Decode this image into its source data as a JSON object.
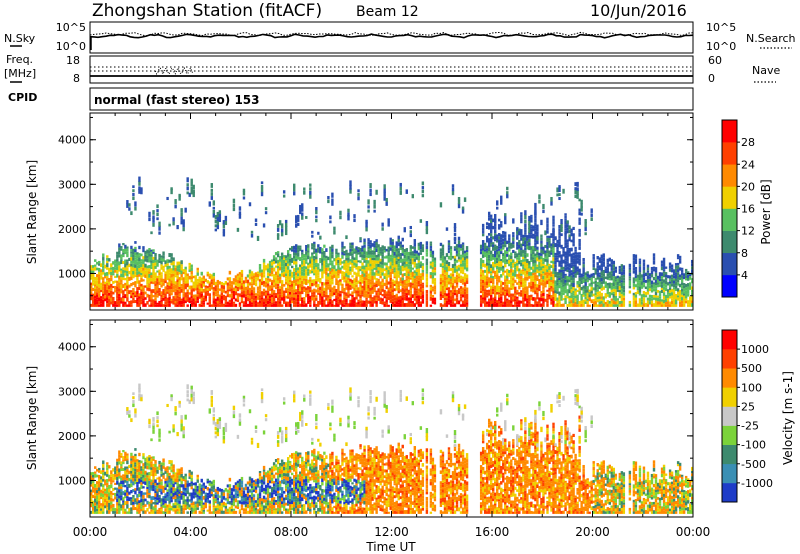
{
  "header": {
    "station": "Zhongshan Station (fitACF)",
    "beam": "Beam 12",
    "date": "10/Jun/2016"
  },
  "chart_data": {
    "type": "heatmap",
    "x_axis": {
      "label": "Time UT",
      "range_hours": [
        0,
        24
      ],
      "tick_labels": [
        "00:00",
        "04:00",
        "08:00",
        "12:00",
        "16:00",
        "20:00",
        "00:00"
      ]
    },
    "nsky_panel": {
      "left_label": "N.Sky",
      "right_label": "N.Search",
      "left_ticks": [
        "10^5",
        "10^0"
      ],
      "right_ticks": [
        "10^5",
        "10^0"
      ]
    },
    "freq_panel": {
      "left_label_1": "Freq.",
      "left_label_2": "[MHz]",
      "right_label": "Nave",
      "left_ticks": [
        "18",
        "8"
      ],
      "right_ticks": [
        "60",
        "0"
      ]
    },
    "cpid": {
      "label": "CPID",
      "text": "normal (fast stereo) 153"
    },
    "power_panel": {
      "ylabel": "Slant Range [km]",
      "y_range": [
        180,
        4600
      ],
      "y_ticks": [
        "1000",
        "2000",
        "3000",
        "4000"
      ],
      "colorbar_label": "Power [dB]",
      "colorbar_ticks": [
        "4",
        "8",
        "12",
        "16",
        "20",
        "24",
        "28"
      ],
      "colorbar_colors": [
        "#0000ff",
        "#2a4fb0",
        "#3d8a6e",
        "#58c060",
        "#f0d000",
        "#ff8a00",
        "#ff4000",
        "#ff0000"
      ]
    },
    "velocity_panel": {
      "ylabel": "Slant Range [km]",
      "y_range": [
        180,
        4600
      ],
      "y_ticks": [
        "1000",
        "2000",
        "3000",
        "4000"
      ],
      "colorbar_label": "Velocity [m s-1]",
      "colorbar_ticks": [
        "1000",
        "500",
        "100",
        "25",
        "-25",
        "-100",
        "-500",
        "-1000"
      ],
      "colorbar_colors": [
        "#1e3cc8",
        "#3a8fb4",
        "#3d8a6e",
        "#7bd33a",
        "#c8c8c8",
        "#f0d000",
        "#ff8a00",
        "#ff4000",
        "#ff0000"
      ]
    }
  }
}
